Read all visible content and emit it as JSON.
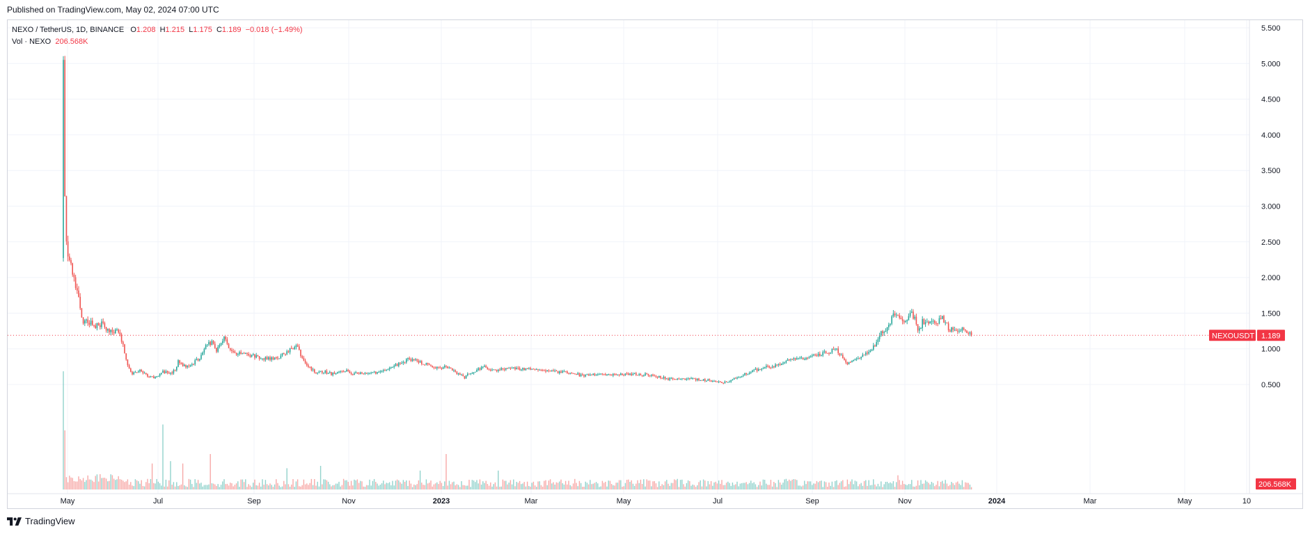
{
  "header": {
    "published": "Published on TradingView.com, May 02, 2024 07:00 UTC"
  },
  "legend": {
    "symbol": "NEXO / TetherUS, 1D, BINANCE",
    "o_key": "O",
    "o_val": "1.208",
    "h_key": "H",
    "h_val": "1.215",
    "l_key": "L",
    "l_val": "1.175",
    "c_key": "C",
    "c_val": "1.189",
    "change": "−0.018 (−1.49%)",
    "vol_label": "Vol · NEXO",
    "vol_val": "206.568K"
  },
  "price_tag": {
    "symbol": "NEXOUSDT",
    "value": "1.189"
  },
  "volume_tag": "206.568K",
  "footer": {
    "brand": "TradingView"
  },
  "colors": {
    "up": "#26a69a",
    "down": "#ef5350",
    "accent": "#f23645",
    "grid": "#f0f3fa"
  },
  "chart_data": {
    "type": "candlestick",
    "symbol": "NEXOUSDT",
    "exchange": "BINANCE",
    "interval": "1D",
    "ylim": [
      0.3,
      5.6
    ],
    "y_ticks": [
      "5.500",
      "5.000",
      "4.500",
      "4.000",
      "3.500",
      "3.000",
      "2.500",
      "2.000",
      "1.500",
      "1.000",
      "0.500"
    ],
    "x_ticks": [
      "May",
      "Jul",
      "Sep",
      "Nov",
      "2023",
      "Mar",
      "May",
      "Jul",
      "Sep",
      "Nov",
      "2024",
      "Mar",
      "May",
      "10"
    ],
    "last_price": 1.189,
    "anchors": [
      [
        0,
        5.05
      ],
      [
        1,
        3.05
      ],
      [
        2,
        2.5
      ],
      [
        3,
        2.3
      ],
      [
        5,
        2.15
      ],
      [
        7,
        1.95
      ],
      [
        9,
        1.8
      ],
      [
        11,
        1.6
      ],
      [
        13,
        1.35
      ],
      [
        16,
        1.4
      ],
      [
        20,
        1.32
      ],
      [
        25,
        1.35
      ],
      [
        30,
        1.22
      ],
      [
        35,
        1.28
      ],
      [
        37,
        1.22
      ],
      [
        40,
        0.95
      ],
      [
        42,
        0.78
      ],
      [
        45,
        0.65
      ],
      [
        50,
        0.7
      ],
      [
        55,
        0.62
      ],
      [
        60,
        0.6
      ],
      [
        65,
        0.68
      ],
      [
        70,
        0.65
      ],
      [
        73,
        0.72
      ],
      [
        75,
        0.82
      ],
      [
        80,
        0.75
      ],
      [
        85,
        0.8
      ],
      [
        90,
        0.9
      ],
      [
        93,
        1.05
      ],
      [
        97,
        1.1
      ],
      [
        100,
        0.98
      ],
      [
        103,
        1.05
      ],
      [
        105,
        1.15
      ],
      [
        108,
        1.0
      ],
      [
        112,
        0.95
      ],
      [
        115,
        0.93
      ],
      [
        120,
        0.92
      ],
      [
        125,
        0.9
      ],
      [
        130,
        0.87
      ],
      [
        135,
        0.86
      ],
      [
        140,
        0.88
      ],
      [
        146,
        0.95
      ],
      [
        150,
        1.02
      ],
      [
        153,
        1.05
      ],
      [
        155,
        0.92
      ],
      [
        160,
        0.75
      ],
      [
        165,
        0.67
      ],
      [
        170,
        0.68
      ],
      [
        175,
        0.65
      ],
      [
        180,
        0.68
      ],
      [
        184,
        0.7
      ],
      [
        188,
        0.65
      ],
      [
        193,
        0.66
      ],
      [
        198,
        0.64
      ],
      [
        205,
        0.67
      ],
      [
        210,
        0.7
      ],
      [
        215,
        0.75
      ],
      [
        220,
        0.8
      ],
      [
        225,
        0.85
      ],
      [
        230,
        0.83
      ],
      [
        235,
        0.8
      ],
      [
        240,
        0.75
      ],
      [
        245,
        0.73
      ],
      [
        250,
        0.75
      ],
      [
        255,
        0.68
      ],
      [
        262,
        0.6
      ],
      [
        265,
        0.65
      ],
      [
        270,
        0.7
      ],
      [
        275,
        0.74
      ],
      [
        280,
        0.7
      ],
      [
        290,
        0.72
      ],
      [
        300,
        0.72
      ],
      [
        310,
        0.7
      ],
      [
        320,
        0.68
      ],
      [
        330,
        0.67
      ],
      [
        340,
        0.62
      ],
      [
        350,
        0.65
      ],
      [
        360,
        0.64
      ],
      [
        370,
        0.65
      ],
      [
        380,
        0.64
      ],
      [
        385,
        0.62
      ],
      [
        390,
        0.6
      ],
      [
        395,
        0.58
      ],
      [
        400,
        0.57
      ],
      [
        410,
        0.58
      ],
      [
        420,
        0.56
      ],
      [
        425,
        0.55
      ],
      [
        430,
        0.53
      ],
      [
        435,
        0.55
      ],
      [
        440,
        0.6
      ],
      [
        445,
        0.65
      ],
      [
        450,
        0.68
      ],
      [
        455,
        0.73
      ],
      [
        460,
        0.75
      ],
      [
        465,
        0.77
      ],
      [
        470,
        0.8
      ],
      [
        475,
        0.85
      ],
      [
        480,
        0.88
      ],
      [
        485,
        0.86
      ],
      [
        490,
        0.9
      ],
      [
        495,
        0.92
      ],
      [
        500,
        0.96
      ],
      [
        505,
        1.0
      ],
      [
        508,
        0.9
      ],
      [
        512,
        0.8
      ],
      [
        515,
        0.85
      ],
      [
        520,
        0.88
      ],
      [
        525,
        0.95
      ],
      [
        530,
        1.05
      ],
      [
        533,
        1.2
      ],
      [
        537,
        1.25
      ],
      [
        540,
        1.38
      ],
      [
        542,
        1.52
      ],
      [
        546,
        1.45
      ],
      [
        550,
        1.35
      ],
      [
        553,
        1.55
      ],
      [
        556,
        1.42
      ],
      [
        558,
        1.22
      ],
      [
        561,
        1.38
      ],
      [
        565,
        1.35
      ],
      [
        570,
        1.38
      ],
      [
        574,
        1.42
      ],
      [
        576,
        1.4
      ],
      [
        578,
        1.25
      ],
      [
        582,
        1.28
      ],
      [
        585,
        1.25
      ],
      [
        588,
        1.28
      ],
      [
        591,
        1.22
      ],
      [
        593,
        1.189
      ]
    ],
    "volume_spikes": [
      [
        0,
        1.0
      ],
      [
        1,
        0.5
      ],
      [
        58,
        0.22
      ],
      [
        65,
        0.55
      ],
      [
        70,
        0.24
      ],
      [
        78,
        0.22
      ],
      [
        96,
        0.3
      ],
      [
        146,
        0.18
      ],
      [
        168,
        0.2
      ],
      [
        233,
        0.16
      ],
      [
        250,
        0.3
      ],
      [
        284,
        0.16
      ],
      [
        545,
        0.12
      ]
    ]
  }
}
